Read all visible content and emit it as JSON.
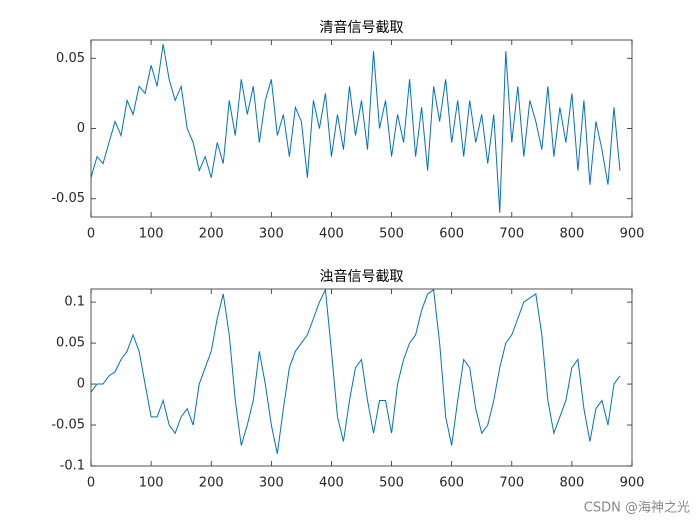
{
  "chart_data": [
    {
      "type": "line",
      "title": "清音信号截取",
      "color": "#0072bd",
      "x": [
        0,
        10,
        20,
        30,
        40,
        50,
        60,
        70,
        80,
        90,
        100,
        110,
        120,
        130,
        140,
        150,
        160,
        170,
        180,
        190,
        200,
        210,
        220,
        230,
        240,
        250,
        260,
        270,
        280,
        290,
        300,
        310,
        320,
        330,
        340,
        350,
        360,
        370,
        380,
        390,
        400,
        410,
        420,
        430,
        440,
        450,
        460,
        470,
        480,
        490,
        500,
        510,
        520,
        530,
        540,
        550,
        560,
        570,
        580,
        590,
        600,
        610,
        620,
        630,
        640,
        650,
        660,
        670,
        680,
        690,
        700,
        710,
        720,
        730,
        740,
        750,
        760,
        770,
        780,
        790,
        800,
        810,
        820,
        830,
        840,
        850,
        860,
        870,
        880
      ],
      "values": [
        -0.035,
        -0.02,
        -0.025,
        -0.01,
        0.005,
        -0.005,
        0.02,
        0.01,
        0.03,
        0.025,
        0.045,
        0.03,
        0.06,
        0.035,
        0.02,
        0.03,
        0.0,
        -0.01,
        -0.03,
        -0.02,
        -0.035,
        -0.01,
        -0.025,
        0.02,
        -0.005,
        0.035,
        0.01,
        0.03,
        -0.01,
        0.02,
        0.035,
        -0.005,
        0.01,
        -0.02,
        0.015,
        0.005,
        -0.035,
        0.02,
        0.0,
        0.025,
        -0.02,
        0.01,
        -0.015,
        0.03,
        -0.005,
        0.02,
        -0.015,
        0.055,
        0.0,
        0.02,
        -0.02,
        0.01,
        -0.01,
        0.035,
        -0.02,
        0.015,
        -0.03,
        0.03,
        0.005,
        0.035,
        -0.01,
        0.02,
        -0.02,
        0.02,
        -0.01,
        0.01,
        -0.025,
        0.01,
        -0.06,
        0.055,
        -0.01,
        0.03,
        -0.02,
        0.02,
        0.005,
        -0.015,
        0.03,
        -0.02,
        0.015,
        -0.01,
        0.025,
        -0.03,
        0.02,
        -0.04,
        0.005,
        -0.015,
        -0.04,
        0.015,
        -0.03
      ],
      "xlim": [
        0,
        900
      ],
      "xticks": [
        0,
        100,
        200,
        300,
        400,
        500,
        600,
        700,
        800,
        900
      ],
      "ylim": [
        -0.063,
        0.063
      ],
      "yticks": [
        -0.05,
        0,
        0.05
      ]
    },
    {
      "type": "line",
      "title": "浊音信号截取",
      "color": "#0072bd",
      "x": [
        0,
        10,
        20,
        30,
        40,
        50,
        60,
        70,
        80,
        90,
        100,
        110,
        120,
        130,
        140,
        150,
        160,
        170,
        180,
        190,
        200,
        210,
        220,
        230,
        240,
        250,
        260,
        270,
        280,
        290,
        300,
        310,
        320,
        330,
        340,
        350,
        360,
        370,
        380,
        390,
        400,
        410,
        420,
        430,
        440,
        450,
        460,
        470,
        480,
        490,
        500,
        510,
        520,
        530,
        540,
        550,
        560,
        570,
        580,
        590,
        600,
        610,
        620,
        630,
        640,
        650,
        660,
        670,
        680,
        690,
        700,
        710,
        720,
        730,
        740,
        750,
        760,
        770,
        780,
        790,
        800,
        810,
        820,
        830,
        840,
        850,
        860,
        870,
        880
      ],
      "values": [
        -0.01,
        0.0,
        0.0,
        0.01,
        0.015,
        0.03,
        0.04,
        0.06,
        0.04,
        0.0,
        -0.04,
        -0.04,
        -0.02,
        -0.05,
        -0.06,
        -0.04,
        -0.03,
        -0.05,
        0.0,
        0.02,
        0.04,
        0.08,
        0.11,
        0.06,
        -0.02,
        -0.075,
        -0.05,
        -0.02,
        0.04,
        0.0,
        -0.05,
        -0.085,
        -0.03,
        0.02,
        0.04,
        0.05,
        0.06,
        0.08,
        0.1,
        0.115,
        0.04,
        -0.04,
        -0.07,
        -0.02,
        0.02,
        0.03,
        -0.02,
        -0.06,
        -0.02,
        -0.02,
        -0.06,
        0.0,
        0.03,
        0.05,
        0.06,
        0.09,
        0.11,
        0.115,
        0.05,
        -0.04,
        -0.075,
        -0.02,
        0.03,
        0.02,
        -0.03,
        -0.06,
        -0.05,
        -0.02,
        0.02,
        0.05,
        0.06,
        0.08,
        0.1,
        0.105,
        0.11,
        0.06,
        -0.02,
        -0.06,
        -0.04,
        -0.02,
        0.02,
        0.03,
        -0.03,
        -0.07,
        -0.03,
        -0.02,
        -0.05,
        0.0,
        0.01
      ],
      "xlim": [
        0,
        900
      ],
      "xticks": [
        0,
        100,
        200,
        300,
        400,
        500,
        600,
        700,
        800,
        900
      ],
      "ylim": [
        -0.1,
        0.116
      ],
      "yticks": [
        -0.1,
        -0.05,
        0,
        0.05,
        0.1
      ]
    }
  ],
  "watermark": "CSDN @海神之光"
}
